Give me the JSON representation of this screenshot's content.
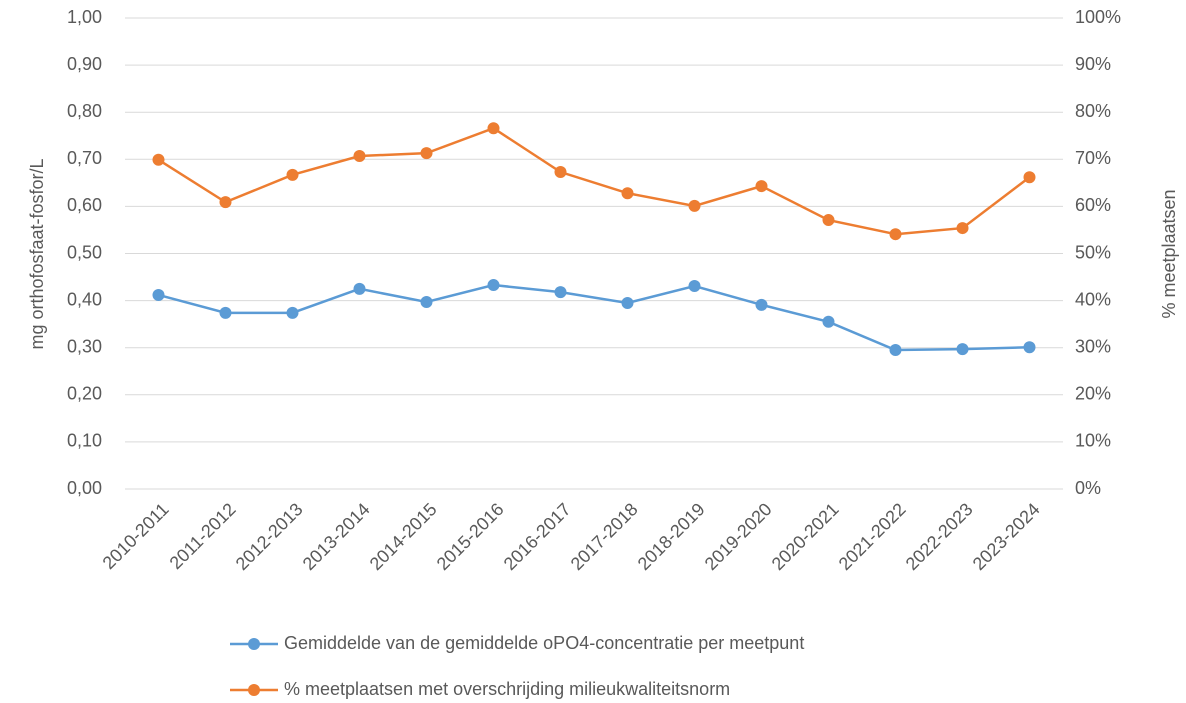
{
  "chart_data": {
    "type": "line",
    "y_label": "mg orthofosfaat-fosfor/L",
    "y2_label": "% meetplaatsen",
    "categories": [
      "2010-2011",
      "2011-2012",
      "2012-2013",
      "2013-2014",
      "2014-2015",
      "2015-2016",
      "2016-2017",
      "2017-2018",
      "2018-2019",
      "2019-2020",
      "2020-2021",
      "2021-2022",
      "2022-2023",
      "2023-2024"
    ],
    "series": [
      {
        "name": "Gemiddelde van de gemiddelde oPO4-concentratie per meetpunt",
        "color": "#5b9bd5",
        "values": [
          0.412,
          0.374,
          0.374,
          0.425,
          0.397,
          0.433,
          0.418,
          0.395,
          0.431,
          0.391,
          0.355,
          0.295,
          0.297,
          0.301
        ]
      },
      {
        "name": "% meetplaatsen met overschrijding milieukwaliteitsnorm",
        "color": "#ed7d31",
        "axis": "y2",
        "values": [
          69.9,
          60.9,
          66.7,
          70.7,
          71.3,
          76.6,
          67.3,
          62.8,
          60.1,
          64.3,
          57.1,
          54.1,
          55.4,
          66.2
        ]
      }
    ],
    "ylim": [
      0,
      1
    ],
    "yticks": [
      {
        "value": 0,
        "label": "0,00"
      },
      {
        "value": 0.1,
        "label": "0,10"
      },
      {
        "value": 0.2,
        "label": "0,20"
      },
      {
        "value": 0.3,
        "label": "0,30"
      },
      {
        "value": 0.4,
        "label": "0,40"
      },
      {
        "value": 0.5,
        "label": "0,50"
      },
      {
        "value": 0.6,
        "label": "0,60"
      },
      {
        "value": 0.7,
        "label": "0,70"
      },
      {
        "value": 0.8,
        "label": "0,80"
      },
      {
        "value": 0.9,
        "label": "0,90"
      },
      {
        "value": 1,
        "label": "1,00"
      }
    ],
    "y2lim": [
      0,
      100
    ],
    "y2ticks": [
      {
        "value": 0,
        "label": "0%"
      },
      {
        "value": 10,
        "label": "10%"
      },
      {
        "value": 20,
        "label": "20%"
      },
      {
        "value": 30,
        "label": "30%"
      },
      {
        "value": 40,
        "label": "40%"
      },
      {
        "value": 50,
        "label": "50%"
      },
      {
        "value": 60,
        "label": "60%"
      },
      {
        "value": 70,
        "label": "70%"
      },
      {
        "value": 80,
        "label": "80%"
      },
      {
        "value": 90,
        "label": "90%"
      },
      {
        "value": 100,
        "label": "100%"
      }
    ],
    "grid": true
  }
}
